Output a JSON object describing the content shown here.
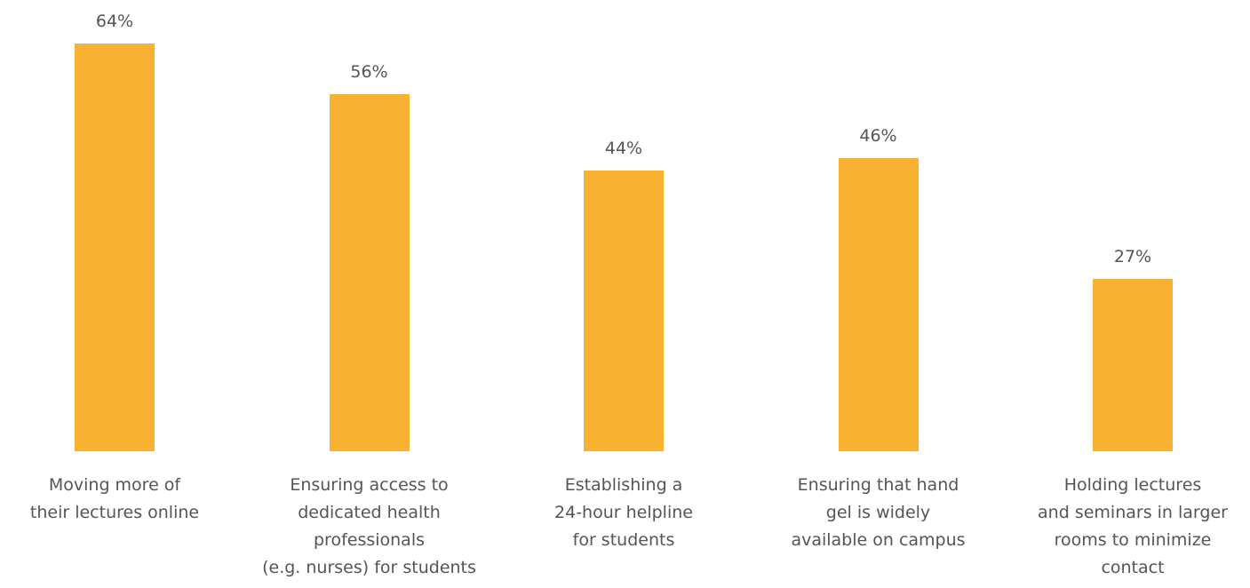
{
  "chart_data": {
    "type": "bar",
    "categories": [
      "Moving more of\ntheir lectures online",
      "Ensuring access to\ndedicated health\nprofessionals\n(e.g. nurses) for students",
      "Establishing a\n24-hour helpline\nfor students",
      "Ensuring that hand\ngel is widely\navailable on campus",
      "Holding lectures\nand seminars in larger\nrooms to minimize\ncontact"
    ],
    "values": [
      64,
      56,
      44,
      46,
      27
    ],
    "value_labels": [
      "64%",
      "56%",
      "44%",
      "46%",
      "27%"
    ],
    "color": "#f9b132"
  }
}
